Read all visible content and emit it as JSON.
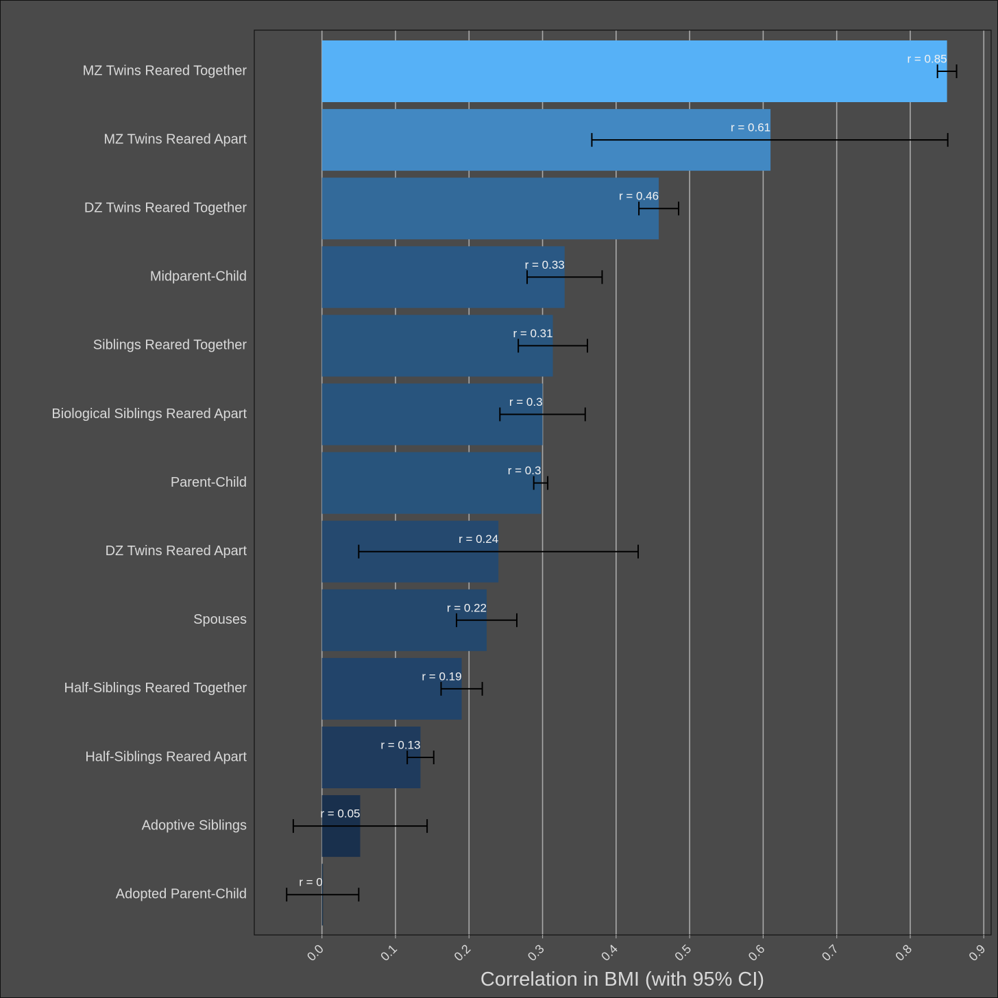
{
  "chart_data": {
    "type": "bar",
    "orientation": "horizontal",
    "title": "",
    "xlabel": "Correlation in BMI (with 95% CI)",
    "ylabel": "",
    "xlim": [
      -0.092,
      0.91
    ],
    "xticks": [
      0.0,
      0.1,
      0.2,
      0.3,
      0.4,
      0.5,
      0.6,
      0.7,
      0.8,
      0.9
    ],
    "xtick_labels": [
      "0.0",
      "0.1",
      "0.2",
      "0.3",
      "0.4",
      "0.5",
      "0.6",
      "0.7",
      "0.8",
      "0.9"
    ],
    "grid": "vertical",
    "legend": "none",
    "categories": [
      "MZ Twins Reared Together",
      "MZ Twins Reared Apart",
      "DZ Twins Reared Together",
      "Midparent-Child",
      "Siblings Reared Together",
      "Biological Siblings Reared Apart",
      "Parent-Child",
      "DZ Twins Reared Apart",
      "Spouses",
      "Half-Siblings Reared Together",
      "Half-Siblings Reared Apart",
      "Adoptive Siblings",
      "Adopted Parent-Child"
    ],
    "values": [
      0.85,
      0.61,
      0.458,
      0.33,
      0.314,
      0.3,
      0.298,
      0.24,
      0.224,
      0.19,
      0.134,
      0.052,
      0.001
    ],
    "ci_lower": [
      0.837,
      0.367,
      0.431,
      0.279,
      0.267,
      0.242,
      0.288,
      0.05,
      0.183,
      0.162,
      0.116,
      -0.039,
      -0.048
    ],
    "ci_upper": [
      0.863,
      0.851,
      0.485,
      0.381,
      0.361,
      0.358,
      0.307,
      0.43,
      0.265,
      0.218,
      0.152,
      0.143,
      0.05
    ],
    "data_labels": [
      "r = 0.85",
      "r = 0.61",
      "r = 0.46",
      "r = 0.33",
      "r = 0.31",
      "r = 0.3",
      "r = 0.3",
      "r = 0.24",
      "r = 0.22",
      "r = 0.19",
      "r = 0.13",
      "r = 0.05",
      "r = 0"
    ],
    "bar_colors": [
      "#56b1f7",
      "#4288c2",
      "#336a9a",
      "#2a5884",
      "#29567f",
      "#28547d",
      "#28547c",
      "#25496f",
      "#24486d",
      "#22446a",
      "#1f3b5d",
      "#19304d",
      "#132b43"
    ],
    "colors": {
      "background": "#4a4a4a",
      "gridline": "#aaaaaa",
      "border": "#111111",
      "text": "#d9d9d9",
      "data_label": "#f2f2f2",
      "errorbar": "#000000"
    }
  }
}
